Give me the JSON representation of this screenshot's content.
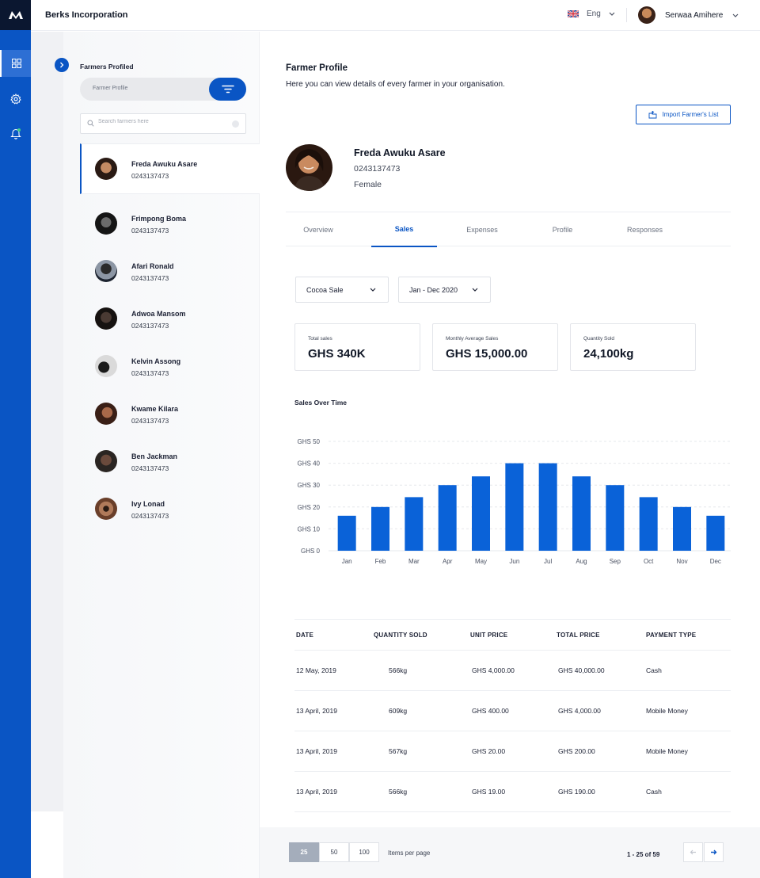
{
  "app": {
    "org_name": "Berks Incorporation",
    "language": "Eng",
    "user_name": "Serwaa Amihere",
    "accent": "#0a55c4"
  },
  "rail": {
    "items": [
      {
        "icon": "dashboard-icon",
        "active": true
      },
      {
        "icon": "gear-icon",
        "active": false
      },
      {
        "icon": "bell-icon",
        "active": false
      }
    ]
  },
  "farmers_panel": {
    "title": "Farmers Profiled",
    "view_label": "Farmer Profile",
    "search_placeholder": "Search farmers here",
    "farmers": [
      {
        "name": "Freda Awuku Asare",
        "phone": "0243137473",
        "selected": true
      },
      {
        "name": "Frimpong Boma",
        "phone": "0243137473"
      },
      {
        "name": "Afari Ronald",
        "phone": "0243137473"
      },
      {
        "name": "Adwoa Mansom",
        "phone": "0243137473"
      },
      {
        "name": "Kelvin Assong",
        "phone": "0243137473"
      },
      {
        "name": "Kwame Kilara",
        "phone": "0243137473"
      },
      {
        "name": "Ben Jackman",
        "phone": "0243137473"
      },
      {
        "name": "Ivy Lonad",
        "phone": "0243137473"
      }
    ]
  },
  "main": {
    "title": "Farmer Profile",
    "subtitle": "Here you can view details of every farmer in your organisation.",
    "import_label": "Import Farmer's List",
    "profile": {
      "name": "Freda Awuku Asare",
      "phone": "0243137473",
      "gender": "Female"
    },
    "tabs": [
      {
        "label": "Overview"
      },
      {
        "label": "Sales",
        "active": true
      },
      {
        "label": "Expenses"
      },
      {
        "label": "Profile"
      },
      {
        "label": "Responses"
      }
    ],
    "filters": {
      "sale_type": "Cocoa Sale",
      "period": "Jan - Dec 2020"
    },
    "stats": [
      {
        "label": "Total sales",
        "value": "GHS 340K"
      },
      {
        "label": "Monthly Average Sales",
        "value": "GHS 15,000.00"
      },
      {
        "label": "Quantity Sold",
        "value": "24,100kg"
      }
    ],
    "chart_title": "Sales Over Time"
  },
  "chart_data": {
    "type": "bar",
    "categories": [
      "Jan",
      "Feb",
      "Mar",
      "Apr",
      "May",
      "Jun",
      "Jul",
      "Aug",
      "Sep",
      "Oct",
      "Nov",
      "Dec"
    ],
    "values": [
      16,
      20,
      24.5,
      30,
      34,
      40,
      40,
      34,
      30,
      24.5,
      20,
      16
    ],
    "y_ticks": [
      "GHS 0",
      "GHS 10",
      "GHS 20",
      "GHS 30",
      "GHS 40",
      "GHS 50"
    ],
    "ylim": [
      0,
      50
    ],
    "bar_color": "#0a62d8",
    "grid": true
  },
  "table": {
    "headers": [
      "DATE",
      "QUANTITY SOLD",
      "UNIT PRICE",
      "TOTAL PRICE",
      "PAYMENT TYPE"
    ],
    "rows": [
      [
        "12 May, 2019",
        "566kg",
        "GHS 4,000.00",
        "GHS 40,000.00",
        "Cash"
      ],
      [
        "13 April, 2019",
        "609kg",
        "GHS 400.00",
        "GHS 4,000.00",
        "Mobile Money"
      ],
      [
        "13 April, 2019",
        "567kg",
        "GHS 20.00",
        "GHS 200.00",
        "Mobile Money"
      ],
      [
        "13 April, 2019",
        "566kg",
        "GHS 19.00",
        "GHS 190.00",
        "Cash"
      ]
    ]
  },
  "pagination": {
    "page_sizes": [
      "25",
      "50",
      "100"
    ],
    "active_size": "25",
    "items_label": "Items per page",
    "range": "1 - 25 of 59"
  }
}
